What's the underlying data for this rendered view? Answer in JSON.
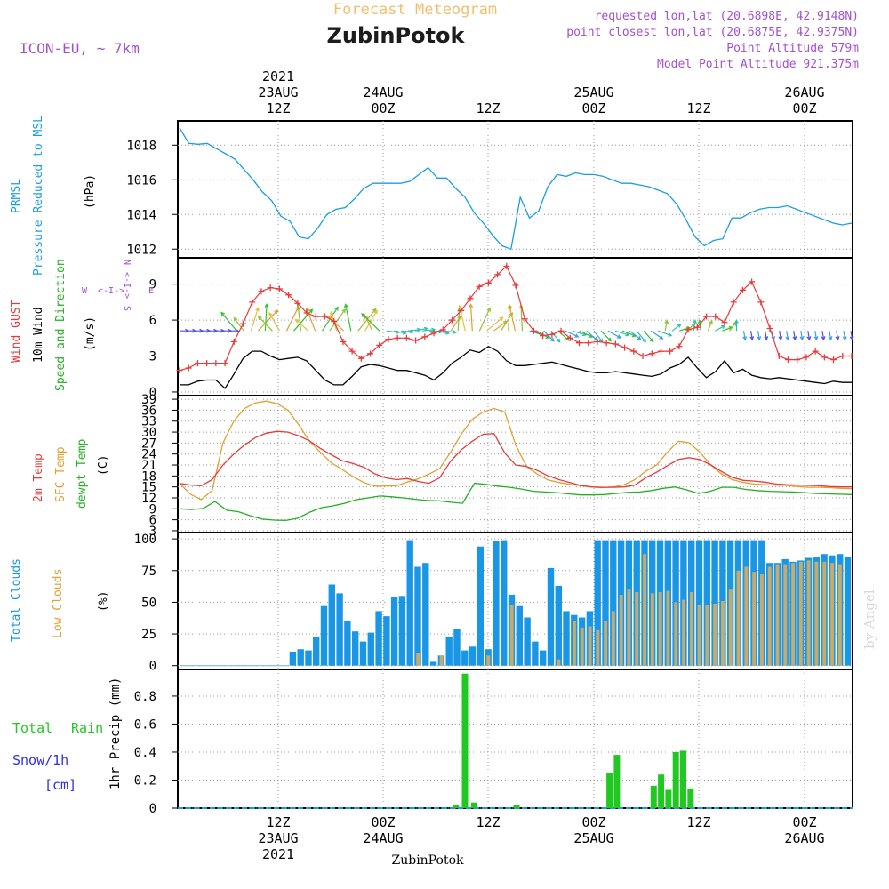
{
  "header": {
    "forecast_title": "Forecast Meteogram",
    "station": "ZubinPotok",
    "model": "ICON-EU, ~ 7km",
    "requested": "requested lon,lat (20.6898E, 42.9148N)",
    "closest": "point closest lon,lat (20.6875E, 42.9375N)",
    "point_altitude": "Point Altitude 579m",
    "model_altitude": "Model Point Altitude 921.375m",
    "footer_station": "ZubinPotok",
    "watermark": "by Angel"
  },
  "colors": {
    "pressure": "#1a9ee0",
    "gust": "#e83a3a",
    "wind": "#000000",
    "temp2m": "#e83a3a",
    "sfc": "#e0a030",
    "dew": "#22b022",
    "total_clouds": "#1a96e6",
    "low_clouds": "#c8aa6a",
    "rain": "#22c822",
    "snow": "#3030e0",
    "purple": "#a050d0",
    "orange_title": "#f0c070"
  },
  "time_axis": {
    "top_labels": [
      {
        "l1": "2021",
        "l2": "23AUG",
        "l3": "12Z"
      },
      {
        "l1": "",
        "l2": "24AUG",
        "l3": "00Z"
      },
      {
        "l1": "",
        "l2": "",
        "l3": "12Z"
      },
      {
        "l1": "",
        "l2": "25AUG",
        "l3": "00Z"
      },
      {
        "l1": "",
        "l2": "",
        "l3": "12Z"
      },
      {
        "l1": "",
        "l2": "26AUG",
        "l3": "00Z"
      }
    ],
    "bottom_labels": [
      {
        "l1": "12Z",
        "l2": "23AUG",
        "l3": "2021"
      },
      {
        "l1": "00Z",
        "l2": "24AUG",
        "l3": ""
      },
      {
        "l1": "12Z",
        "l2": "",
        "l3": ""
      },
      {
        "l1": "00Z",
        "l2": "25AUG",
        "l3": ""
      },
      {
        "l1": "12Z",
        "l2": "",
        "l3": ""
      },
      {
        "l1": "00Z",
        "l2": "26AUG",
        "l3": ""
      }
    ]
  },
  "panel_labels": {
    "pressure": {
      "l1": "PRMSL",
      "l2": "Pressure Reduced to MSL",
      "unit": "(hPa)"
    },
    "wind": {
      "gust": "Wind GUST",
      "wind10": "10m Wind",
      "speeddir": "Speed and Direction",
      "unit": "(m/s)",
      "compass_w": "W",
      "compass_e": "E",
      "compass_n": "N",
      "compass_s": "S",
      "compass_ew": "<-I->",
      "compass_ns": "<-I->"
    },
    "temp": {
      "t2m": "2m Temp",
      "sfc": "SFC Temp",
      "dew": "dewpt Temp",
      "unit": "(C)"
    },
    "clouds": {
      "total": "Total Clouds",
      "low": "Low Clouds",
      "unit": "(%)"
    },
    "precip": {
      "total": "Total",
      "rain": "Rain",
      "snow": "Snow/1h",
      "cm": "[cm]",
      "axis": "1hr Precip (mm)"
    }
  },
  "chart_data": [
    {
      "type": "line",
      "name": "pressure",
      "ylabel": "(hPa)",
      "ylim": [
        1011.5,
        1019.4
      ],
      "yticks": [
        1012,
        1014,
        1016,
        1018
      ],
      "series": [
        {
          "name": "PRMSL",
          "values": [
            1019,
            1018.1,
            1018.05,
            1018.1,
            1017.8,
            1017.5,
            1017.2,
            1016.6,
            1016,
            1015.3,
            1014.8,
            1013.9,
            1013.6,
            1012.7,
            1012.6,
            1013.2,
            1014,
            1014.3,
            1014.4,
            1014.9,
            1015.5,
            1015.8,
            1015.8,
            1015.8,
            1015.8,
            1015.9,
            1016.3,
            1016.7,
            1016.1,
            1016.1,
            1015.5,
            1015,
            1014.1,
            1013.5,
            1012.8,
            1012.2,
            1012,
            1015,
            1013.8,
            1014.2,
            1015.6,
            1016.3,
            1016.2,
            1016.4,
            1016.3,
            1016.3,
            1016.2,
            1016,
            1015.8,
            1015.8,
            1015.7,
            1015.6,
            1015.4,
            1015.2,
            1014.6,
            1013.7,
            1012.7,
            1012.2,
            1012.5,
            1012.6,
            1013.8,
            1013.8,
            1014.1,
            1014.3,
            1014.4,
            1014.4,
            1014.5,
            1014.3,
            1014.1,
            1013.9,
            1013.7,
            1013.5,
            1013.4,
            1013.5
          ]
        }
      ]
    },
    {
      "type": "line",
      "name": "wind",
      "ylabel": "(m/s)",
      "ylim": [
        -0.3,
        11.2
      ],
      "yticks": [
        0,
        3,
        6,
        9
      ],
      "series": [
        {
          "name": "Wind GUST",
          "values": [
            1.8,
            2,
            2.4,
            2.4,
            2.4,
            2.4,
            4.2,
            5.7,
            7.5,
            8.4,
            8.7,
            8.6,
            8.1,
            7.4,
            6.6,
            6.3,
            6.3,
            5.9,
            4.2,
            3.4,
            2.8,
            3.2,
            3.9,
            4.4,
            4.5,
            4.5,
            4.3,
            4.6,
            4.9,
            5.2,
            6,
            6.8,
            7.8,
            8.8,
            9.1,
            9.8,
            10.5,
            8.9,
            6.1,
            5.1,
            4.7,
            4.8,
            5.1,
            4.5,
            4.1,
            4.1,
            4.2,
            4.1,
            4,
            3.7,
            3.4,
            3,
            3.2,
            3.4,
            3.4,
            3.8,
            5.2,
            5.4,
            6.3,
            6.3,
            5.8,
            7.5,
            8.5,
            9.2,
            7.5,
            5.3,
            3,
            2.7,
            2.7,
            2.9,
            3.4,
            2.9,
            2.7,
            3,
            3
          ]
        },
        {
          "name": "10m Wind",
          "values": [
            0.6,
            0.6,
            0.9,
            1,
            1,
            0.3,
            1.5,
            2.8,
            3.4,
            3.4,
            3,
            2.7,
            2.8,
            2.9,
            2.6,
            1.8,
            1,
            0.6,
            0.6,
            1.3,
            2.1,
            2.3,
            2.2,
            2,
            1.8,
            1.8,
            1.6,
            1.4,
            1,
            1.6,
            2.4,
            2.9,
            3.5,
            3.3,
            3.8,
            3.4,
            2.6,
            2.2,
            2.2,
            2.3,
            2.4,
            2.5,
            2.3,
            2.1,
            1.9,
            1.7,
            1.6,
            1.6,
            1.7,
            1.6,
            1.5,
            1.4,
            1.3,
            1.5,
            2,
            2.3,
            2.9,
            2,
            1.2,
            1.7,
            2.6,
            1.6,
            1.9,
            1.4,
            1.2,
            1.1,
            1.2,
            1.1,
            1,
            0.9,
            0.8,
            0.7,
            0.9,
            0.8,
            0.8
          ]
        }
      ],
      "wind_arrows": {
        "direction_names": "W <-I-> E / N <-I-> S"
      }
    },
    {
      "type": "line",
      "name": "temperature",
      "ylabel": "(C)",
      "ylim": [
        2.5,
        40
      ],
      "yticks": [
        3,
        6,
        9,
        12,
        15,
        18,
        21,
        24,
        27,
        30,
        33,
        36,
        39
      ],
      "series": [
        {
          "name": "2m Temp",
          "values": [
            16,
            15.5,
            15.3,
            17,
            21,
            24,
            26.5,
            28.5,
            29.7,
            30.2,
            30,
            29,
            27.6,
            25.5,
            23.8,
            22.2,
            21.4,
            20.4,
            18.6,
            17.5,
            17,
            17.3,
            16.5,
            16,
            17.5,
            22,
            25.2,
            27.5,
            29.4,
            29.6,
            24.3,
            21,
            20.6,
            19.5,
            18,
            17,
            16.2,
            15.4,
            15,
            14.9,
            14.9,
            15,
            15.5,
            17.5,
            19,
            20.8,
            22.5,
            23,
            22.5,
            21,
            19.2,
            17.6,
            16.8,
            16.6,
            16.3,
            15.8,
            15.6,
            15.5,
            15.4,
            15.3,
            15.1,
            15,
            15
          ]
        },
        {
          "name": "SFC Temp",
          "values": [
            16,
            13,
            11.5,
            14,
            27,
            33,
            36.5,
            38,
            38.5,
            37.8,
            36,
            32,
            27.5,
            24.5,
            21.6,
            19.8,
            17.8,
            16.2,
            15.2,
            15.2,
            15.3,
            16.3,
            17.2,
            18.5,
            20,
            24.5,
            29.5,
            33.5,
            35.5,
            36.5,
            35.5,
            26.5,
            20.6,
            18.5,
            16.9,
            16.2,
            15.7,
            15.3,
            15,
            14.8,
            15,
            15.6,
            17,
            19.3,
            21,
            24.5,
            27.5,
            27.1,
            24.5,
            21,
            18.5,
            17,
            16.2,
            15.8,
            15.6,
            15.5,
            15.4,
            15.1,
            14.9,
            14.9,
            14.8,
            14.6,
            14.5
          ]
        },
        {
          "name": "dewpt Temp",
          "values": [
            9,
            8.8,
            9.1,
            11,
            8.6,
            8.2,
            7.1,
            6.2,
            5.9,
            5.8,
            6.4,
            8,
            9.3,
            9.8,
            10.5,
            11.5,
            12,
            12.5,
            12.3,
            12,
            11.6,
            11.3,
            11.2,
            10.8,
            10.5,
            16,
            15.7,
            15.2,
            14.9,
            14.4,
            13.8,
            13.6,
            13.4,
            13.1,
            12.8,
            12.8,
            12.9,
            13.2,
            13.5,
            13.6,
            14,
            14.6,
            15,
            14.2,
            13.2,
            13.8,
            14.9,
            14.9,
            14.3,
            14,
            13.8,
            13.7,
            13.6,
            13.4,
            13.2,
            13.1,
            13,
            12.9
          ]
        }
      ]
    },
    {
      "type": "bar",
      "name": "clouds",
      "ylabel": "(%)",
      "ylim": [
        -3,
        105
      ],
      "yticks": [
        0,
        25,
        50,
        75,
        100
      ],
      "series": [
        {
          "name": "Total Clouds",
          "values": [
            0,
            0,
            0,
            0,
            0,
            0,
            0,
            0,
            0,
            0,
            0,
            0,
            0,
            0,
            11,
            13,
            12,
            23,
            47,
            64,
            57,
            35,
            27,
            19,
            26,
            43,
            39,
            54,
            55,
            99,
            78,
            81,
            3,
            8,
            23,
            29,
            12,
            15,
            94,
            13,
            98,
            99,
            56,
            47,
            38,
            19,
            12,
            77,
            63,
            43,
            40,
            38,
            43,
            99,
            99,
            99,
            99,
            99,
            99,
            99,
            99,
            99,
            99,
            99,
            99,
            99,
            99,
            99,
            99,
            99,
            99,
            99,
            99,
            99,
            99,
            81,
            81,
            84,
            82,
            83,
            85,
            86,
            88,
            87,
            88,
            86
          ]
        },
        {
          "name": "Low Clouds",
          "values": [
            0,
            0,
            0,
            0,
            0,
            0,
            0,
            0,
            0,
            0,
            0,
            0,
            0,
            0,
            0,
            0,
            0,
            0,
            0,
            0,
            0,
            0,
            0,
            0,
            0,
            0,
            0,
            0,
            0,
            0,
            10,
            0,
            0,
            8,
            0,
            0,
            0,
            0,
            0,
            8,
            0,
            0,
            48,
            0,
            0,
            0,
            0,
            0,
            5,
            0,
            35,
            30,
            31,
            28,
            35,
            43,
            56,
            60,
            58,
            88,
            57,
            58,
            59,
            50,
            52,
            58,
            48,
            48,
            49,
            51,
            60,
            75,
            78,
            74,
            72,
            78,
            80,
            80,
            81,
            82,
            83,
            82,
            82,
            81,
            80
          ]
        }
      ]
    },
    {
      "type": "bar",
      "name": "precip",
      "ylabel": "1hr Precip (mm)",
      "ylim": [
        0,
        0.99
      ],
      "yticks": [
        0,
        0.2,
        0.4,
        0.6,
        0.8
      ],
      "series": [
        {
          "name": "Total Rain",
          "values": [
            {
              "x": 30,
              "y": 0.02
            },
            {
              "x": 31,
              "y": 0.96
            },
            {
              "x": 32,
              "y": 0.04
            },
            {
              "x": 36.6,
              "y": 0.02
            },
            {
              "x": 46.7,
              "y": 0.25
            },
            {
              "x": 47.5,
              "y": 0.38
            },
            {
              "x": 51.5,
              "y": 0.16
            },
            {
              "x": 52.3,
              "y": 0.24
            },
            {
              "x": 53.1,
              "y": 0.13
            },
            {
              "x": 53.9,
              "y": 0.4
            },
            {
              "x": 54.7,
              "y": 0.41
            },
            {
              "x": 55.5,
              "y": 0.14
            }
          ]
        }
      ]
    }
  ]
}
